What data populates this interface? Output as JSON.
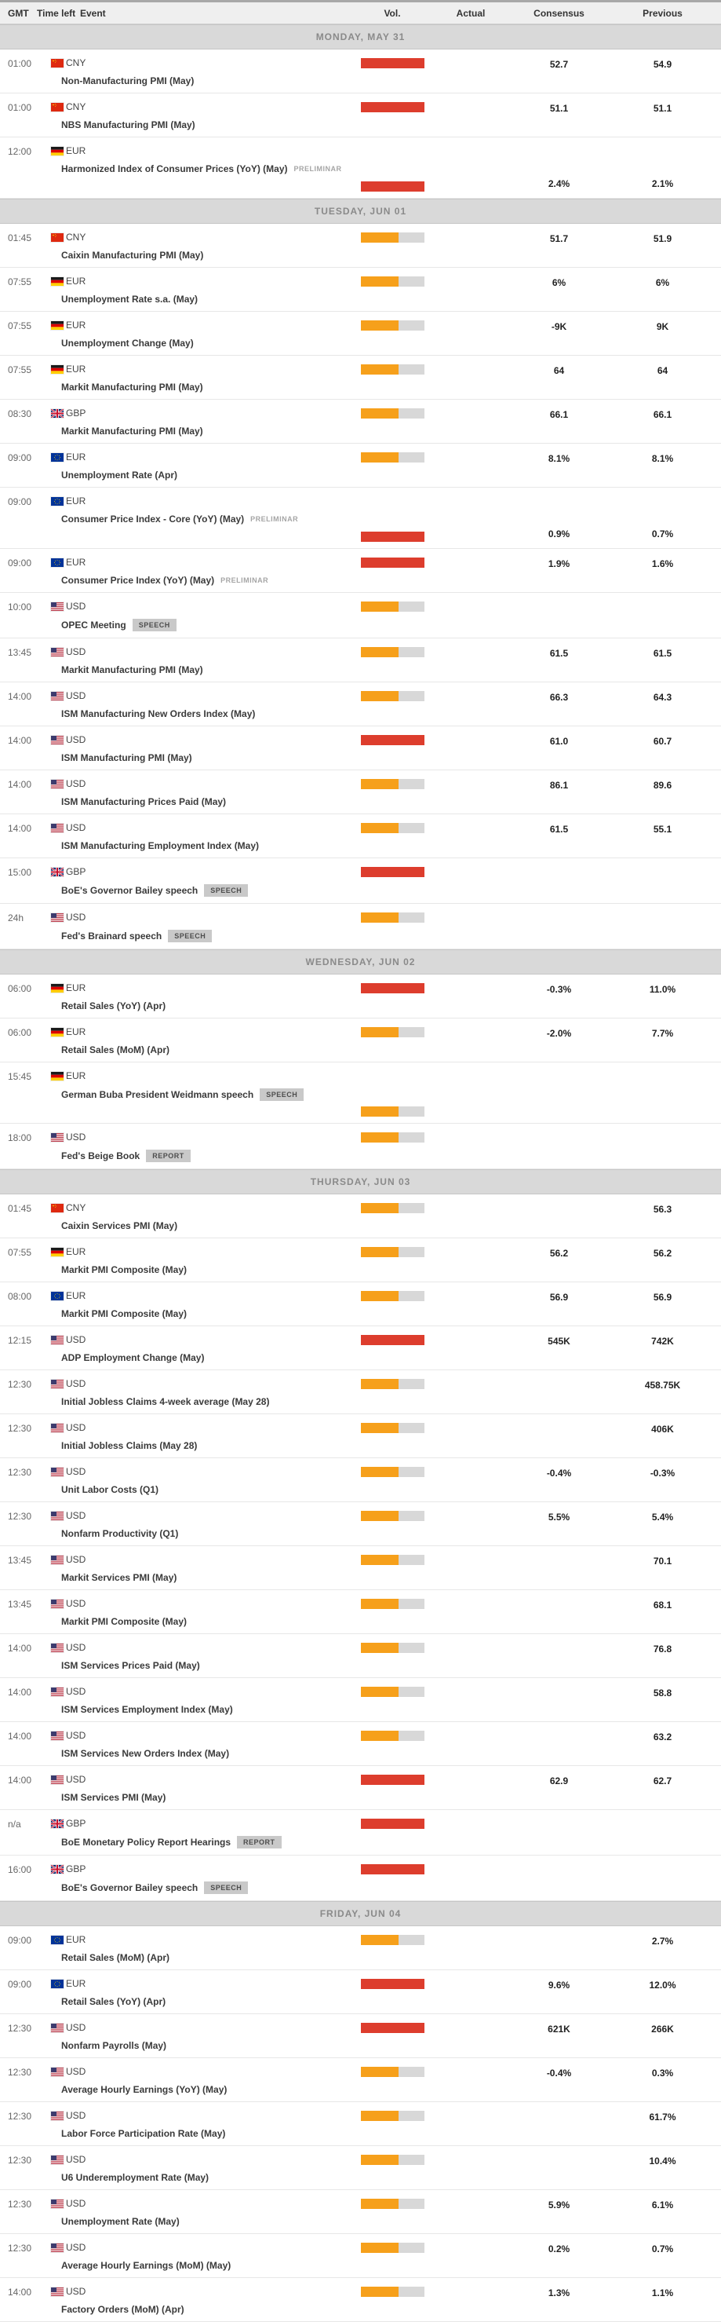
{
  "table": {
    "columns": {
      "gmt": "GMT",
      "time_left": "Time left",
      "event": "Event",
      "vol": "Vol.",
      "actual": "Actual",
      "consensus": "Consensus",
      "previous": "Previous"
    }
  },
  "colors": {
    "high": "#dd3d2d",
    "medium": "#f6a01b",
    "bar_track": "#d8d8d8",
    "day_band": "#d9d9d9"
  },
  "days": [
    {
      "label": "MONDAY, MAY 31",
      "events": [
        {
          "time": "01:00",
          "currency": "CNY",
          "flag": "cn",
          "event": "Non-Manufacturing PMI (May)",
          "badge": "",
          "tag": "",
          "volatility": "high",
          "bar_position": "top",
          "actual": "",
          "consensus": "52.7",
          "previous": "54.9"
        },
        {
          "time": "01:00",
          "currency": "CNY",
          "flag": "cn",
          "event": "NBS Manufacturing PMI (May)",
          "badge": "",
          "tag": "",
          "volatility": "high",
          "bar_position": "top",
          "actual": "",
          "consensus": "51.1",
          "previous": "51.1"
        },
        {
          "time": "12:00",
          "currency": "EUR",
          "flag": "de",
          "event": "Harmonized Index of Consumer Prices (YoY) (May)",
          "badge": "",
          "tag": "PRELIMINAR",
          "volatility": "high",
          "bar_position": "bottom",
          "actual": "",
          "consensus": "2.4%",
          "previous": "2.1%"
        }
      ]
    },
    {
      "label": "TUESDAY, JUN 01",
      "events": [
        {
          "time": "01:45",
          "currency": "CNY",
          "flag": "cn",
          "event": "Caixin Manufacturing PMI (May)",
          "badge": "",
          "tag": "",
          "volatility": "medium",
          "bar_position": "top",
          "actual": "",
          "consensus": "51.7",
          "previous": "51.9"
        },
        {
          "time": "07:55",
          "currency": "EUR",
          "flag": "de",
          "event": "Unemployment Rate s.a. (May)",
          "badge": "",
          "tag": "",
          "volatility": "medium",
          "bar_position": "top",
          "actual": "",
          "consensus": "6%",
          "previous": "6%"
        },
        {
          "time": "07:55",
          "currency": "EUR",
          "flag": "de",
          "event": "Unemployment Change (May)",
          "badge": "",
          "tag": "",
          "volatility": "medium",
          "bar_position": "top",
          "actual": "",
          "consensus": "-9K",
          "previous": "9K"
        },
        {
          "time": "07:55",
          "currency": "EUR",
          "flag": "de",
          "event": "Markit Manufacturing PMI (May)",
          "badge": "",
          "tag": "",
          "volatility": "medium",
          "bar_position": "top",
          "actual": "",
          "consensus": "64",
          "previous": "64"
        },
        {
          "time": "08:30",
          "currency": "GBP",
          "flag": "gb",
          "event": "Markit Manufacturing PMI (May)",
          "badge": "",
          "tag": "",
          "volatility": "medium",
          "bar_position": "top",
          "actual": "",
          "consensus": "66.1",
          "previous": "66.1"
        },
        {
          "time": "09:00",
          "currency": "EUR",
          "flag": "eu",
          "event": "Unemployment Rate (Apr)",
          "badge": "",
          "tag": "",
          "volatility": "medium",
          "bar_position": "top",
          "actual": "",
          "consensus": "8.1%",
          "previous": "8.1%"
        },
        {
          "time": "09:00",
          "currency": "EUR",
          "flag": "eu",
          "event": "Consumer Price Index - Core (YoY) (May)",
          "badge": "",
          "tag": "PRELIMINAR",
          "volatility": "high",
          "bar_position": "bottom",
          "actual": "",
          "consensus": "0.9%",
          "previous": "0.7%"
        },
        {
          "time": "09:00",
          "currency": "EUR",
          "flag": "eu",
          "event": "Consumer Price Index (YoY) (May)",
          "badge": "",
          "tag": "PRELIMINAR",
          "volatility": "high",
          "bar_position": "top",
          "actual": "",
          "consensus": "1.9%",
          "previous": "1.6%"
        },
        {
          "time": "10:00",
          "currency": "USD",
          "flag": "us",
          "event": "OPEC Meeting",
          "badge": "SPEECH",
          "tag": "",
          "volatility": "medium",
          "bar_position": "top",
          "actual": "",
          "consensus": "",
          "previous": ""
        },
        {
          "time": "13:45",
          "currency": "USD",
          "flag": "us",
          "event": "Markit Manufacturing PMI (May)",
          "badge": "",
          "tag": "",
          "volatility": "medium",
          "bar_position": "top",
          "actual": "",
          "consensus": "61.5",
          "previous": "61.5"
        },
        {
          "time": "14:00",
          "currency": "USD",
          "flag": "us",
          "event": "ISM Manufacturing New Orders Index (May)",
          "badge": "",
          "tag": "",
          "volatility": "medium",
          "bar_position": "top",
          "actual": "",
          "consensus": "66.3",
          "previous": "64.3"
        },
        {
          "time": "14:00",
          "currency": "USD",
          "flag": "us",
          "event": "ISM Manufacturing PMI (May)",
          "badge": "",
          "tag": "",
          "volatility": "high",
          "bar_position": "top",
          "actual": "",
          "consensus": "61.0",
          "previous": "60.7"
        },
        {
          "time": "14:00",
          "currency": "USD",
          "flag": "us",
          "event": "ISM Manufacturing Prices Paid (May)",
          "badge": "",
          "tag": "",
          "volatility": "medium",
          "bar_position": "top",
          "actual": "",
          "consensus": "86.1",
          "previous": "89.6"
        },
        {
          "time": "14:00",
          "currency": "USD",
          "flag": "us",
          "event": "ISM Manufacturing Employment Index (May)",
          "badge": "",
          "tag": "",
          "volatility": "medium",
          "bar_position": "top",
          "actual": "",
          "consensus": "61.5",
          "previous": "55.1"
        },
        {
          "time": "15:00",
          "currency": "GBP",
          "flag": "gb",
          "event": "BoE's Governor Bailey speech",
          "badge": "SPEECH",
          "tag": "",
          "volatility": "high",
          "bar_position": "top",
          "actual": "",
          "consensus": "",
          "previous": ""
        },
        {
          "time": "24h",
          "currency": "USD",
          "flag": "us",
          "event": "Fed's Brainard speech",
          "badge": "SPEECH",
          "tag": "",
          "volatility": "medium",
          "bar_position": "top",
          "actual": "",
          "consensus": "",
          "previous": ""
        }
      ]
    },
    {
      "label": "WEDNESDAY, JUN 02",
      "events": [
        {
          "time": "06:00",
          "currency": "EUR",
          "flag": "de",
          "event": "Retail Sales (YoY) (Apr)",
          "badge": "",
          "tag": "",
          "volatility": "high",
          "bar_position": "top",
          "actual": "",
          "consensus": "-0.3%",
          "previous": "11.0%"
        },
        {
          "time": "06:00",
          "currency": "EUR",
          "flag": "de",
          "event": "Retail Sales (MoM) (Apr)",
          "badge": "",
          "tag": "",
          "volatility": "medium",
          "bar_position": "top",
          "actual": "",
          "consensus": "-2.0%",
          "previous": "7.7%"
        },
        {
          "time": "15:45",
          "currency": "EUR",
          "flag": "de",
          "event": "German Buba President Weidmann speech",
          "badge": "SPEECH",
          "tag": "",
          "volatility": "medium",
          "bar_position": "bottom",
          "actual": "",
          "consensus": "",
          "previous": ""
        },
        {
          "time": "18:00",
          "currency": "USD",
          "flag": "us",
          "event": "Fed's Beige Book",
          "badge": "REPORT",
          "tag": "",
          "volatility": "medium",
          "bar_position": "top",
          "actual": "",
          "consensus": "",
          "previous": ""
        }
      ]
    },
    {
      "label": "THURSDAY, JUN 03",
      "events": [
        {
          "time": "01:45",
          "currency": "CNY",
          "flag": "cn",
          "event": "Caixin Services PMI (May)",
          "badge": "",
          "tag": "",
          "volatility": "medium",
          "bar_position": "top",
          "actual": "",
          "consensus": "",
          "previous": "56.3"
        },
        {
          "time": "07:55",
          "currency": "EUR",
          "flag": "de",
          "event": "Markit PMI Composite (May)",
          "badge": "",
          "tag": "",
          "volatility": "medium",
          "bar_position": "top",
          "actual": "",
          "consensus": "56.2",
          "previous": "56.2"
        },
        {
          "time": "08:00",
          "currency": "EUR",
          "flag": "eu",
          "event": "Markit PMI Composite (May)",
          "badge": "",
          "tag": "",
          "volatility": "medium",
          "bar_position": "top",
          "actual": "",
          "consensus": "56.9",
          "previous": "56.9"
        },
        {
          "time": "12:15",
          "currency": "USD",
          "flag": "us",
          "event": "ADP Employment Change (May)",
          "badge": "",
          "tag": "",
          "volatility": "high",
          "bar_position": "top",
          "actual": "",
          "consensus": "545K",
          "previous": "742K"
        },
        {
          "time": "12:30",
          "currency": "USD",
          "flag": "us",
          "event": "Initial Jobless Claims 4-week average (May 28)",
          "badge": "",
          "tag": "",
          "volatility": "medium",
          "bar_position": "top",
          "actual": "",
          "consensus": "",
          "previous": "458.75K"
        },
        {
          "time": "12:30",
          "currency": "USD",
          "flag": "us",
          "event": "Initial Jobless Claims (May 28)",
          "badge": "",
          "tag": "",
          "volatility": "medium",
          "bar_position": "top",
          "actual": "",
          "consensus": "",
          "previous": "406K"
        },
        {
          "time": "12:30",
          "currency": "USD",
          "flag": "us",
          "event": "Unit Labor Costs (Q1)",
          "badge": "",
          "tag": "",
          "volatility": "medium",
          "bar_position": "top",
          "actual": "",
          "consensus": "-0.4%",
          "previous": "-0.3%"
        },
        {
          "time": "12:30",
          "currency": "USD",
          "flag": "us",
          "event": "Nonfarm Productivity (Q1)",
          "badge": "",
          "tag": "",
          "volatility": "medium",
          "bar_position": "top",
          "actual": "",
          "consensus": "5.5%",
          "previous": "5.4%"
        },
        {
          "time": "13:45",
          "currency": "USD",
          "flag": "us",
          "event": "Markit Services PMI (May)",
          "badge": "",
          "tag": "",
          "volatility": "medium",
          "bar_position": "top",
          "actual": "",
          "consensus": "",
          "previous": "70.1"
        },
        {
          "time": "13:45",
          "currency": "USD",
          "flag": "us",
          "event": "Markit PMI Composite (May)",
          "badge": "",
          "tag": "",
          "volatility": "medium",
          "bar_position": "top",
          "actual": "",
          "consensus": "",
          "previous": "68.1"
        },
        {
          "time": "14:00",
          "currency": "USD",
          "flag": "us",
          "event": "ISM Services Prices Paid (May)",
          "badge": "",
          "tag": "",
          "volatility": "medium",
          "bar_position": "top",
          "actual": "",
          "consensus": "",
          "previous": "76.8"
        },
        {
          "time": "14:00",
          "currency": "USD",
          "flag": "us",
          "event": "ISM Services Employment Index (May)",
          "badge": "",
          "tag": "",
          "volatility": "medium",
          "bar_position": "top",
          "actual": "",
          "consensus": "",
          "previous": "58.8"
        },
        {
          "time": "14:00",
          "currency": "USD",
          "flag": "us",
          "event": "ISM Services New Orders Index (May)",
          "badge": "",
          "tag": "",
          "volatility": "medium",
          "bar_position": "top",
          "actual": "",
          "consensus": "",
          "previous": "63.2"
        },
        {
          "time": "14:00",
          "currency": "USD",
          "flag": "us",
          "event": "ISM Services PMI (May)",
          "badge": "",
          "tag": "",
          "volatility": "high",
          "bar_position": "top",
          "actual": "",
          "consensus": "62.9",
          "previous": "62.7"
        },
        {
          "time": "n/a",
          "currency": "GBP",
          "flag": "gb",
          "event": "BoE Monetary Policy Report Hearings",
          "badge": "REPORT",
          "tag": "",
          "volatility": "high",
          "bar_position": "top",
          "actual": "",
          "consensus": "",
          "previous": ""
        },
        {
          "time": "16:00",
          "currency": "GBP",
          "flag": "gb",
          "event": "BoE's Governor Bailey speech",
          "badge": "SPEECH",
          "tag": "",
          "volatility": "high",
          "bar_position": "top",
          "actual": "",
          "consensus": "",
          "previous": ""
        }
      ]
    },
    {
      "label": "FRIDAY, JUN 04",
      "events": [
        {
          "time": "09:00",
          "currency": "EUR",
          "flag": "eu",
          "event": "Retail Sales (MoM) (Apr)",
          "badge": "",
          "tag": "",
          "volatility": "medium",
          "bar_position": "top",
          "actual": "",
          "consensus": "",
          "previous": "2.7%"
        },
        {
          "time": "09:00",
          "currency": "EUR",
          "flag": "eu",
          "event": "Retail Sales (YoY) (Apr)",
          "badge": "",
          "tag": "",
          "volatility": "high",
          "bar_position": "top",
          "actual": "",
          "consensus": "9.6%",
          "previous": "12.0%"
        },
        {
          "time": "12:30",
          "currency": "USD",
          "flag": "us",
          "event": "Nonfarm Payrolls (May)",
          "badge": "",
          "tag": "",
          "volatility": "high",
          "bar_position": "top",
          "actual": "",
          "consensus": "621K",
          "previous": "266K"
        },
        {
          "time": "12:30",
          "currency": "USD",
          "flag": "us",
          "event": "Average Hourly Earnings (YoY) (May)",
          "badge": "",
          "tag": "",
          "volatility": "medium",
          "bar_position": "top",
          "actual": "",
          "consensus": "-0.4%",
          "previous": "0.3%"
        },
        {
          "time": "12:30",
          "currency": "USD",
          "flag": "us",
          "event": "Labor Force Participation Rate (May)",
          "badge": "",
          "tag": "",
          "volatility": "medium",
          "bar_position": "top",
          "actual": "",
          "consensus": "",
          "previous": "61.7%"
        },
        {
          "time": "12:30",
          "currency": "USD",
          "flag": "us",
          "event": "U6 Underemployment Rate (May)",
          "badge": "",
          "tag": "",
          "volatility": "medium",
          "bar_position": "top",
          "actual": "",
          "consensus": "",
          "previous": "10.4%"
        },
        {
          "time": "12:30",
          "currency": "USD",
          "flag": "us",
          "event": "Unemployment Rate (May)",
          "badge": "",
          "tag": "",
          "volatility": "medium",
          "bar_position": "top",
          "actual": "",
          "consensus": "5.9%",
          "previous": "6.1%"
        },
        {
          "time": "12:30",
          "currency": "USD",
          "flag": "us",
          "event": "Average Hourly Earnings (MoM) (May)",
          "badge": "",
          "tag": "",
          "volatility": "medium",
          "bar_position": "top",
          "actual": "",
          "consensus": "0.2%",
          "previous": "0.7%"
        },
        {
          "time": "14:00",
          "currency": "USD",
          "flag": "us",
          "event": "Factory Orders (MoM) (Apr)",
          "badge": "",
          "tag": "",
          "volatility": "medium",
          "bar_position": "top",
          "actual": "",
          "consensus": "1.3%",
          "previous": "1.1%"
        }
      ]
    }
  ]
}
